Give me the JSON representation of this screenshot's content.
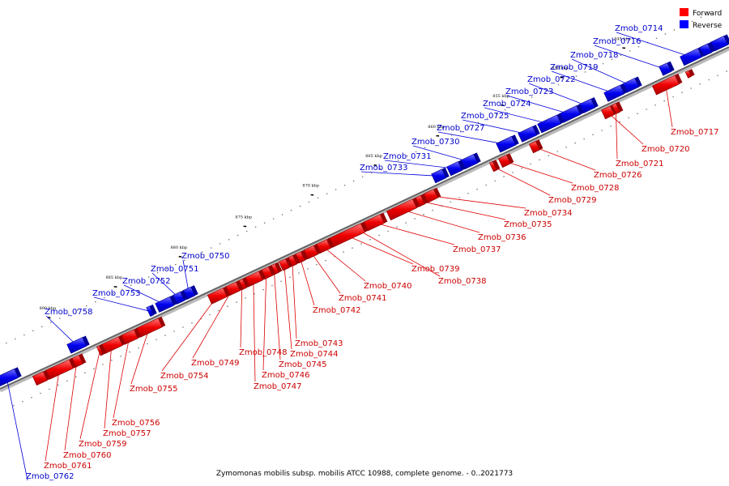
{
  "caption": "Zymomonas mobilis subsp. mobilis ATCC 10988, complete genome. - 0..2021773",
  "legend": [
    {
      "label": "Forward",
      "color": "#ff0000"
    },
    {
      "label": "Reverse",
      "color": "#0000ff"
    }
  ],
  "ticks": [
    "845 kbp",
    "850 kbp",
    "855 kbp",
    "860 kbp",
    "865 kbp",
    "870 kbp",
    "875 kbp",
    "880 kbp",
    "885 kbp",
    "890 kbp"
  ],
  "forward_genes": [
    "Zmob_0717",
    "Zmob_0720",
    "Zmob_0721",
    "Zmob_0726",
    "Zmob_0728",
    "Zmob_0729",
    "Zmob_0734",
    "Zmob_0735",
    "Zmob_0736",
    "Zmob_0737",
    "Zmob_0738",
    "Zmob_0739",
    "Zmob_0740",
    "Zmob_0741",
    "Zmob_0742",
    "Zmob_0743",
    "Zmob_0744",
    "Zmob_0745",
    "Zmob_0746",
    "Zmob_0747",
    "Zmob_0748",
    "Zmob_0749",
    "Zmob_0754",
    "Zmob_0755",
    "Zmob_0756",
    "Zmob_0757",
    "Zmob_0759",
    "Zmob_0760",
    "Zmob_0761"
  ],
  "reverse_genes": [
    "Zmob_0714",
    "Zmob_0716",
    "Zmob_0718",
    "Zmob_0719",
    "Zmob_0722",
    "Zmob_0723",
    "Zmob_0724",
    "Zmob_0725",
    "Zmob_0727",
    "Zmob_0730",
    "Zmob_0731",
    "Zmob_0733",
    "Zmob_0750",
    "Zmob_0751",
    "Zmob_0752",
    "Zmob_0753",
    "Zmob_0758",
    "Zmob_0762"
  ]
}
